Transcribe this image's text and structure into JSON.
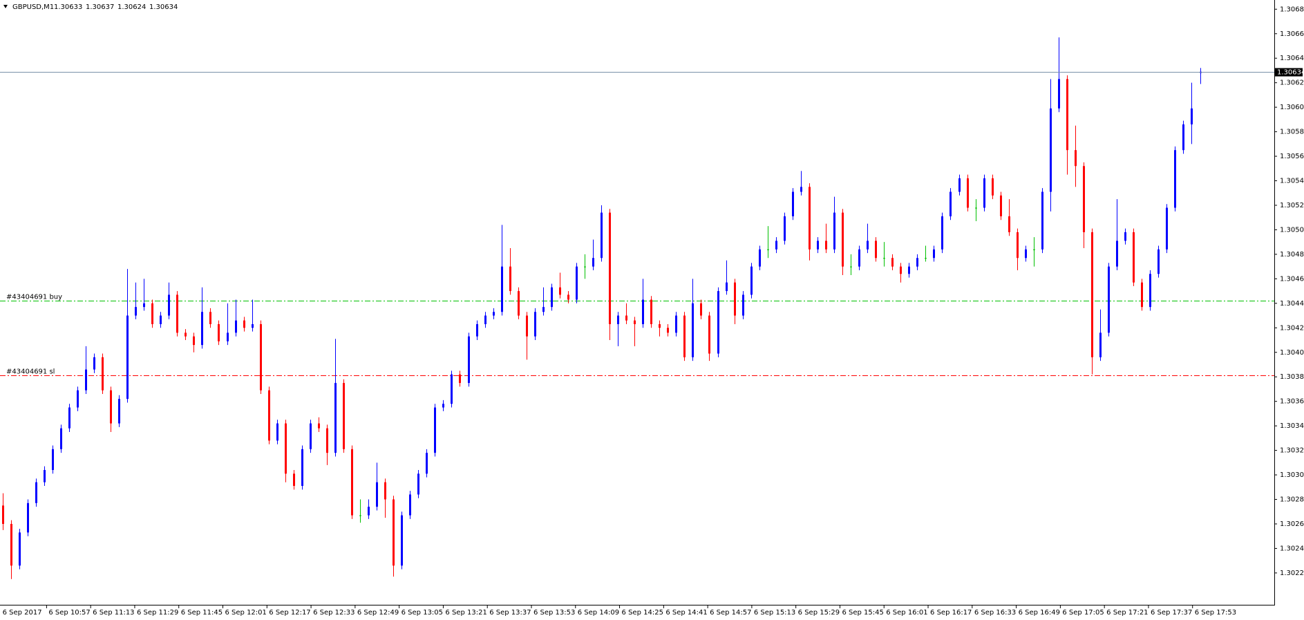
{
  "chart_data": {
    "type": "candlestick",
    "symbol": "GBPUSD,M1",
    "header_ohlc": [
      1.30633,
      1.30637,
      1.30624,
      1.30634
    ],
    "current_price": 1.30634,
    "up_color": "#0000ff",
    "down_color": "#ff0000",
    "doji_color": "#00c000",
    "ylim": [
      1.30199,
      1.306925
    ],
    "yticks": [
      1.30685,
      1.30665,
      1.30645,
      1.30625,
      1.30605,
      1.30585,
      1.30565,
      1.30545,
      1.30525,
      1.30505,
      1.30485,
      1.30465,
      1.30445,
      1.30425,
      1.30405,
      1.30385,
      1.30365,
      1.30345,
      1.30325,
      1.30305,
      1.30285,
      1.30265,
      1.30245,
      1.30225
    ],
    "time_labels": [
      "6 Sep 2017",
      "6 Sep 10:57",
      "6 Sep 11:13",
      "6 Sep 11:29",
      "6 Sep 11:45",
      "6 Sep 12:01",
      "6 Sep 12:17",
      "6 Sep 12:33",
      "6 Sep 12:49",
      "6 Sep 13:05",
      "6 Sep 13:21",
      "6 Sep 13:37",
      "6 Sep 13:53",
      "6 Sep 14:09",
      "6 Sep 14:25",
      "6 Sep 14:41",
      "6 Sep 14:57",
      "6 Sep 15:13",
      "6 Sep 15:29",
      "6 Sep 15:45",
      "6 Sep 16:01",
      "6 Sep 16:17",
      "6 Sep 16:33",
      "6 Sep 16:49",
      "6 Sep 17:05",
      "6 Sep 17:21",
      "6 Sep 17:37",
      "6 Sep 17:53"
    ],
    "order_lines": [
      {
        "label": "#43404691 buy",
        "value": 1.30447,
        "color": "#00c000"
      },
      {
        "label": "#43404691 sl",
        "value": 1.30386,
        "color": "#ff0000"
      }
    ],
    "open": [
      1.3028,
      1.30265,
      1.30231,
      1.30258,
      1.30282,
      1.30299,
      1.30309,
      1.30326,
      1.30343,
      1.3036,
      1.30374,
      1.30391,
      1.30401,
      1.30374,
      1.30347,
      1.30367,
      1.30435,
      1.30442,
      1.30445,
      1.30428,
      1.30435,
      1.30452,
      1.30421,
      1.30418,
      1.30411,
      1.30438,
      1.30428,
      1.30414,
      1.30421,
      1.30431,
      1.30425,
      1.30428,
      1.30374,
      1.30333,
      1.30347,
      1.30306,
      1.30296,
      1.30326,
      1.30347,
      1.30343,
      1.30323,
      1.3038,
      1.30326,
      1.30272,
      1.30272,
      1.30279,
      1.30299,
      1.30285,
      1.30231,
      1.30272,
      1.30289,
      1.30306,
      1.30323,
      1.3036,
      1.30363,
      1.30387,
      1.3038,
      1.30418,
      1.30428,
      1.30435,
      1.30438,
      1.30475,
      1.30455,
      1.30435,
      1.30418,
      1.30438,
      1.30442,
      1.30458,
      1.30452,
      1.30448,
      1.30475,
      1.30475,
      1.30482,
      1.30519,
      1.30428,
      1.30435,
      1.30431,
      1.30428,
      1.30448,
      1.30428,
      1.30425,
      1.30421,
      1.30435,
      1.30401,
      1.30445,
      1.30435,
      1.30404,
      1.30455,
      1.30462,
      1.30435,
      1.30452,
      1.30475,
      1.30489,
      1.30489,
      1.30496,
      1.30516,
      1.30536,
      1.3054,
      1.30489,
      1.30496,
      1.30489,
      1.30519,
      1.30475,
      1.30475,
      1.30489,
      1.30496,
      1.30482,
      1.30482,
      1.30475,
      1.30469,
      1.30475,
      1.30482,
      1.30482,
      1.30489,
      1.30516,
      1.30536,
      1.30547,
      1.30523,
      1.30523,
      1.30547,
      1.30533,
      1.30516,
      1.30503,
      1.30482,
      1.30489,
      1.30489,
      1.30536,
      1.30604,
      1.30628,
      1.3057,
      1.30557,
      1.30503,
      1.30401,
      1.30421,
      1.30475,
      1.30496,
      1.30503,
      1.30462,
      1.30442,
      1.30469,
      1.30489,
      1.30523,
      1.3057,
      1.30591,
      1.30633
    ],
    "high": [
      1.3029,
      1.30268,
      1.30261,
      1.30285,
      1.30302,
      1.30312,
      1.30329,
      1.30346,
      1.30363,
      1.30377,
      1.3041,
      1.30404,
      1.30404,
      1.30377,
      1.3037,
      1.30473,
      1.30462,
      1.30465,
      1.30448,
      1.30438,
      1.30462,
      1.30455,
      1.30424,
      1.30421,
      1.30458,
      1.30441,
      1.30431,
      1.30445,
      1.30448,
      1.30434,
      1.30448,
      1.30431,
      1.30377,
      1.3035,
      1.3035,
      1.30309,
      1.30329,
      1.3035,
      1.30352,
      1.30346,
      1.30416,
      1.30383,
      1.30329,
      1.30285,
      1.30285,
      1.30315,
      1.30302,
      1.30288,
      1.30275,
      1.30292,
      1.30309,
      1.30326,
      1.30363,
      1.30366,
      1.3039,
      1.3039,
      1.30421,
      1.30431,
      1.30438,
      1.30441,
      1.30509,
      1.3049,
      1.30458,
      1.30438,
      1.30441,
      1.30458,
      1.30461,
      1.3047,
      1.30455,
      1.30478,
      1.30485,
      1.30497,
      1.30525,
      1.30522,
      1.30438,
      1.30445,
      1.30434,
      1.30465,
      1.30451,
      1.30431,
      1.30428,
      1.30438,
      1.30438,
      1.30465,
      1.30448,
      1.30438,
      1.30458,
      1.3048,
      1.30465,
      1.30455,
      1.30478,
      1.30492,
      1.30508,
      1.30499,
      1.30519,
      1.30539,
      1.30553,
      1.30543,
      1.30499,
      1.3051,
      1.30532,
      1.30522,
      1.30485,
      1.30492,
      1.3051,
      1.30499,
      1.30495,
      1.30485,
      1.30478,
      1.30478,
      1.30485,
      1.30492,
      1.30492,
      1.30519,
      1.30539,
      1.3055,
      1.3055,
      1.3053,
      1.3055,
      1.3055,
      1.30536,
      1.3053,
      1.30506,
      1.30492,
      1.30499,
      1.30539,
      1.30628,
      1.30662,
      1.30631,
      1.3059,
      1.3056,
      1.30506,
      1.3044,
      1.30478,
      1.3053,
      1.30506,
      1.30506,
      1.30465,
      1.30472,
      1.30492,
      1.30526,
      1.30573,
      1.30594,
      1.30625,
      1.30637
    ],
    "low": [
      1.3026,
      1.3022,
      1.30228,
      1.30255,
      1.30279,
      1.30296,
      1.30306,
      1.30323,
      1.3034,
      1.30357,
      1.30371,
      1.30388,
      1.30371,
      1.3034,
      1.30344,
      1.30364,
      1.30432,
      1.30439,
      1.30425,
      1.30425,
      1.30432,
      1.30418,
      1.30415,
      1.30405,
      1.30408,
      1.30425,
      1.30411,
      1.30411,
      1.30418,
      1.30422,
      1.30422,
      1.30371,
      1.3033,
      1.3033,
      1.30299,
      1.30293,
      1.30293,
      1.30323,
      1.3034,
      1.30313,
      1.3032,
      1.30323,
      1.30269,
      1.30266,
      1.30269,
      1.30276,
      1.3027,
      1.30222,
      1.30228,
      1.30269,
      1.30286,
      1.30303,
      1.3032,
      1.30357,
      1.3036,
      1.30377,
      1.30377,
      1.30415,
      1.30425,
      1.30432,
      1.30435,
      1.30452,
      1.30432,
      1.30399,
      1.30415,
      1.30435,
      1.30439,
      1.30449,
      1.30445,
      1.30445,
      1.30465,
      1.30472,
      1.30479,
      1.30415,
      1.3041,
      1.30428,
      1.3041,
      1.30425,
      1.30425,
      1.30418,
      1.30418,
      1.30418,
      1.30398,
      1.30398,
      1.30432,
      1.30398,
      1.30401,
      1.30452,
      1.30428,
      1.30432,
      1.30449,
      1.30472,
      1.30482,
      1.30486,
      1.30493,
      1.30513,
      1.30533,
      1.3048,
      1.30486,
      1.30486,
      1.30486,
      1.30468,
      1.30468,
      1.30472,
      1.30486,
      1.30479,
      1.30475,
      1.30472,
      1.30462,
      1.30466,
      1.30472,
      1.30479,
      1.30479,
      1.30486,
      1.30513,
      1.30533,
      1.3052,
      1.30512,
      1.3052,
      1.3053,
      1.30513,
      1.305,
      1.30472,
      1.30479,
      1.30475,
      1.30486,
      1.3052,
      1.30601,
      1.3055,
      1.3054,
      1.3049,
      1.30387,
      1.30398,
      1.30418,
      1.30472,
      1.30493,
      1.30459,
      1.30439,
      1.30439,
      1.30466,
      1.30486,
      1.3052,
      1.30567,
      1.30575,
      1.30624
    ],
    "close": [
      1.30265,
      1.30231,
      1.30258,
      1.30282,
      1.30299,
      1.30309,
      1.30326,
      1.30343,
      1.3036,
      1.30374,
      1.30391,
      1.30401,
      1.30374,
      1.30347,
      1.30367,
      1.30435,
      1.30442,
      1.30445,
      1.30428,
      1.30435,
      1.30452,
      1.30421,
      1.30418,
      1.30411,
      1.30438,
      1.30428,
      1.30414,
      1.30421,
      1.30431,
      1.30425,
      1.30428,
      1.30374,
      1.30333,
      1.30347,
      1.30306,
      1.30296,
      1.30326,
      1.30347,
      1.30343,
      1.30323,
      1.3038,
      1.30326,
      1.30272,
      1.30272,
      1.30279,
      1.30299,
      1.30285,
      1.30231,
      1.30272,
      1.30289,
      1.30306,
      1.30323,
      1.3036,
      1.30363,
      1.30387,
      1.3038,
      1.30418,
      1.30428,
      1.30435,
      1.30438,
      1.30475,
      1.30455,
      1.30435,
      1.30418,
      1.30438,
      1.30442,
      1.30458,
      1.30452,
      1.30448,
      1.30475,
      1.30475,
      1.30482,
      1.30519,
      1.30428,
      1.30435,
      1.30431,
      1.30428,
      1.30448,
      1.30428,
      1.30425,
      1.30421,
      1.30435,
      1.30401,
      1.30445,
      1.30435,
      1.30404,
      1.30455,
      1.30462,
      1.30435,
      1.30452,
      1.30475,
      1.30489,
      1.30489,
      1.30496,
      1.30516,
      1.30536,
      1.3054,
      1.30489,
      1.30496,
      1.30489,
      1.30519,
      1.30475,
      1.30475,
      1.30489,
      1.30496,
      1.30482,
      1.30482,
      1.30475,
      1.30469,
      1.30475,
      1.30482,
      1.30482,
      1.30489,
      1.30516,
      1.30536,
      1.30547,
      1.30523,
      1.30523,
      1.30547,
      1.30533,
      1.30516,
      1.30503,
      1.30482,
      1.30489,
      1.30489,
      1.30536,
      1.30604,
      1.30628,
      1.3057,
      1.30557,
      1.30503,
      1.30401,
      1.30421,
      1.30475,
      1.30496,
      1.30503,
      1.30462,
      1.30442,
      1.30469,
      1.30489,
      1.30523,
      1.3057,
      1.30591,
      1.30604,
      1.30634
    ]
  }
}
